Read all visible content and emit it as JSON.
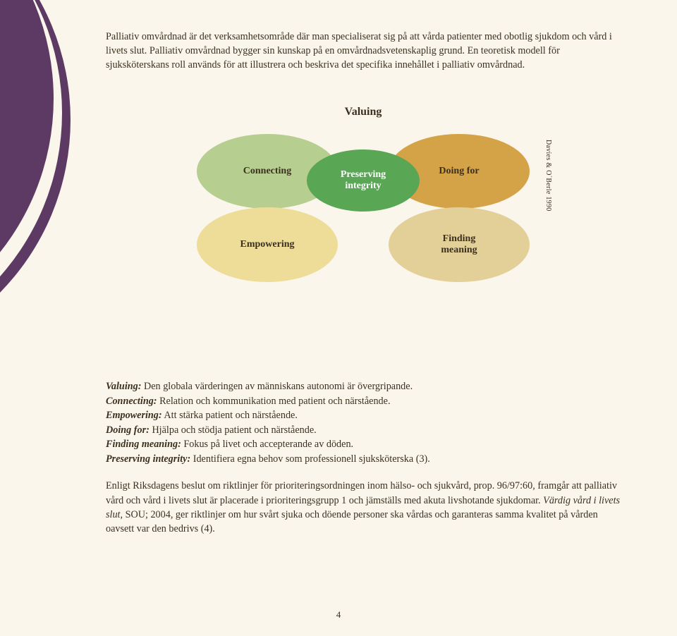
{
  "page": {
    "number": "4",
    "background_color": "#fbf6eb",
    "accent_color": "#5d3a64"
  },
  "intro": {
    "text": "Palliativ omvårdnad är det verksamhetsområde där man specialiserat sig på att vårda patienter med obotlig sjukdom och vård i livets slut. Palliativ omvårdnad bygger sin kunskap på en omvårdnadsvetenskaplig grund. En teoretisk modell för sjuksköterskans roll används för att illustrera och beskriva det specifika innehållet i palliativ omvårdnad."
  },
  "diagram": {
    "title": "Valuing",
    "citation": "Davies & O´Berle 1990",
    "ellipses": {
      "connecting": {
        "label": "Connecting",
        "fill": "#b6ce8f",
        "text_color": "#3b3020"
      },
      "doing": {
        "label": "Doing for",
        "fill": "#d4a347",
        "text_color": "#3b3020"
      },
      "empowering": {
        "label": "Empowering",
        "fill": "#eedd99",
        "text_color": "#3b3020"
      },
      "finding": {
        "label": "Finding\nmeaning",
        "fill": "#e3cf98",
        "text_color": "#3b3020"
      },
      "preserving": {
        "label": "Preserving\nintegrity",
        "fill": "#59a655",
        "text_color": "#ffffff"
      }
    }
  },
  "definitions": [
    {
      "term": "Valuing:",
      "text": " Den globala värderingen av människans autonomi är övergripande."
    },
    {
      "term": "Connecting:",
      "text": " Relation och kommunikation med patient och närstående."
    },
    {
      "term": "Empowering:",
      "text": " Att stärka patient och närstående."
    },
    {
      "term": "Doing for:",
      "text": " Hjälpa och stödja patient och närstående."
    },
    {
      "term": "Finding meaning:",
      "text": " Fokus på livet och accepterande av döden."
    },
    {
      "term": "Preserving integrity:",
      "text": " Identifiera egna behov som professionell sjuksköterska (3)."
    }
  ],
  "closing": {
    "part1": "Enligt Riksdagens beslut om riktlinjer för prioriteringsordningen inom hälso- och sjukvård, prop. 96/97:60, framgår att palliativ vård och vård i livets slut är placerade i prioriteringsgrupp 1 och jämställs med akuta livshotande sjukdomar. ",
    "ital": "Värdig vård i livets slut,",
    "part2": " SOU; 2004, ger riktlinjer om hur svårt sjuka och döende personer ska vårdas och garanteras samma kvalitet på vården oavsett var den bedrivs (4)."
  }
}
